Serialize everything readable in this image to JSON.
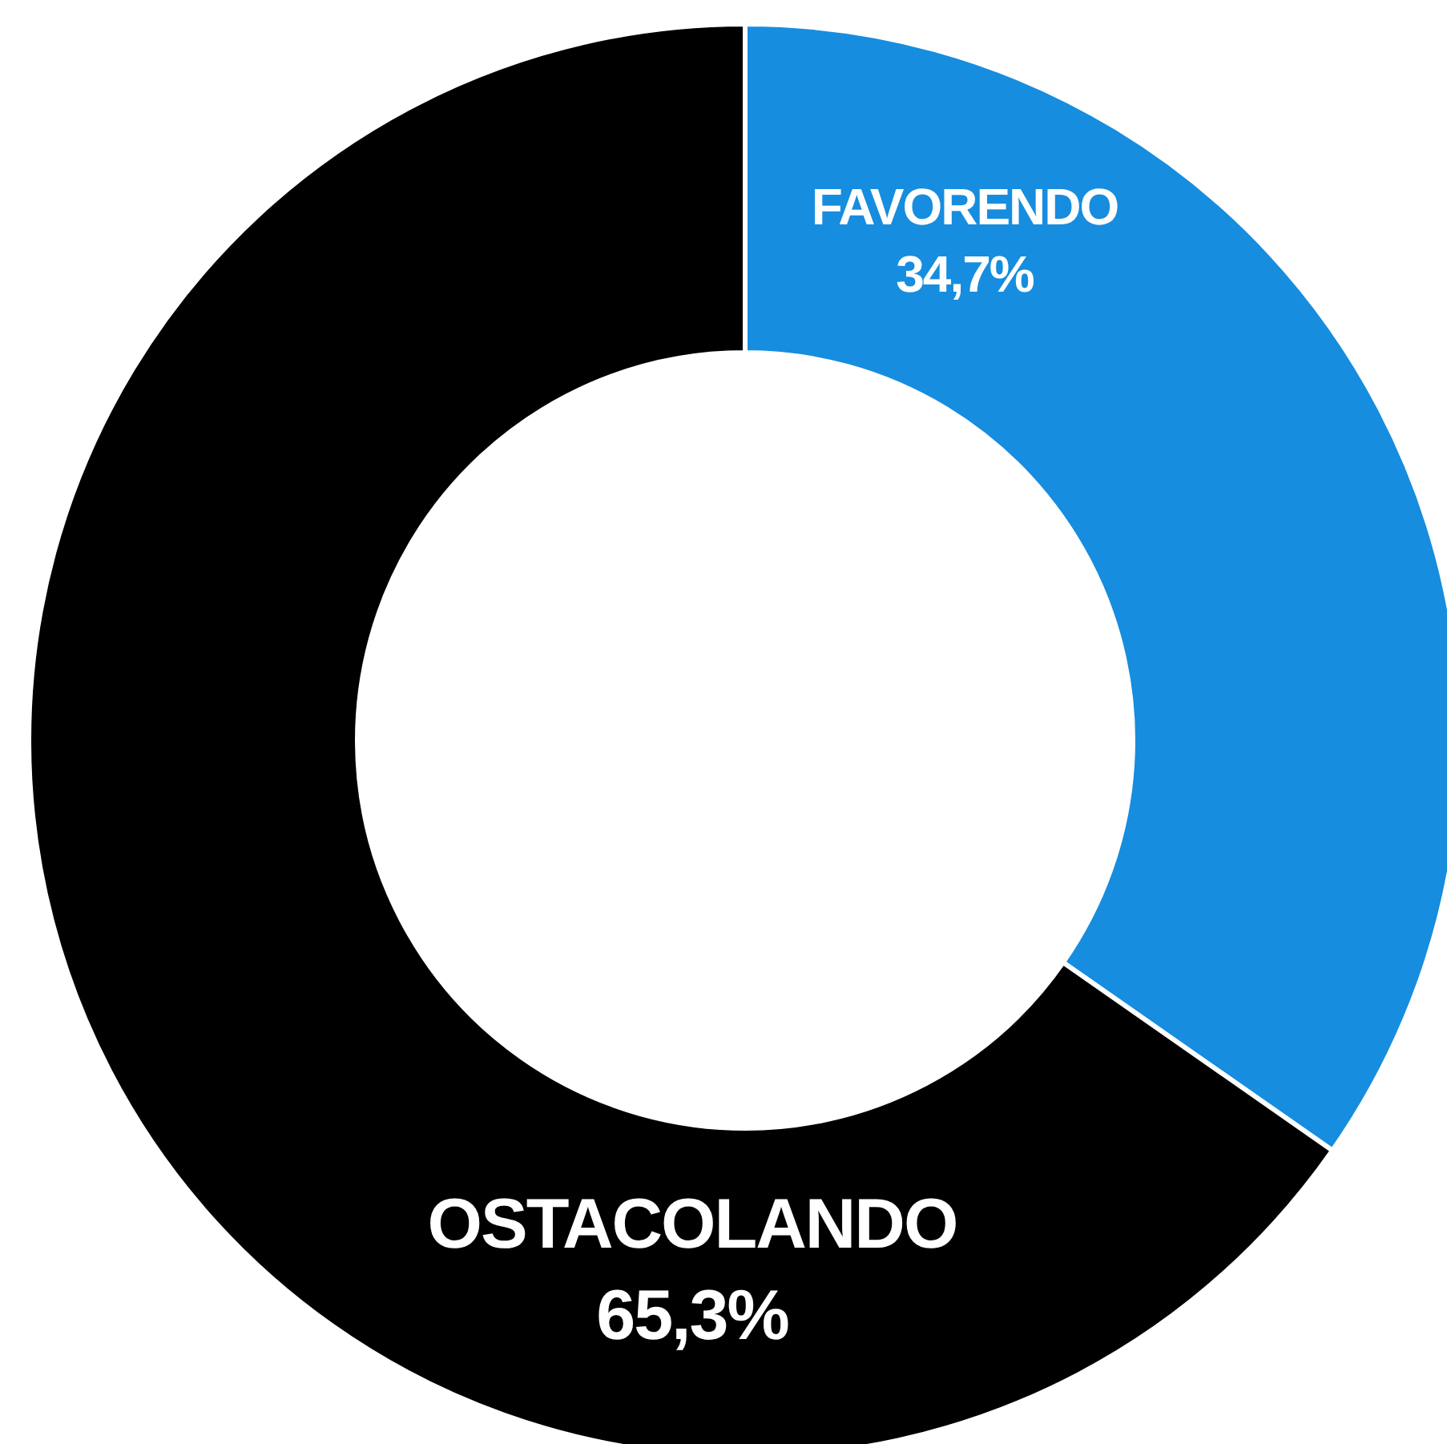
{
  "chart_data": {
    "type": "donut",
    "categories": [
      "FAVORENDO",
      "OSTACOLANDO"
    ],
    "values": [
      34.7,
      65.3
    ],
    "colors": [
      "#168ddf",
      "#000000"
    ],
    "value_labels": [
      "34,7%",
      "65,3%"
    ],
    "legend": false
  }
}
